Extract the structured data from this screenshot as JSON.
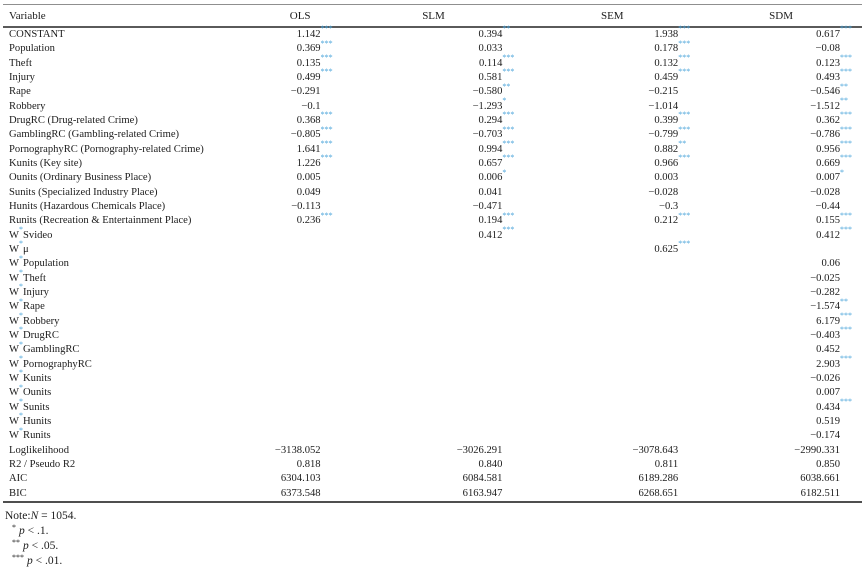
{
  "table": {
    "columns": [
      "Variable",
      "OLS",
      "SLM",
      "SEM",
      "SDM"
    ],
    "rows": [
      {
        "label": "CONSTANT",
        "values": [
          [
            "1.142",
            "***"
          ],
          [
            "0.394",
            "**"
          ],
          [
            "1.938",
            "***"
          ],
          [
            "0.617",
            "***"
          ]
        ]
      },
      {
        "label": "Population",
        "values": [
          [
            "0.369",
            "***"
          ],
          [
            "0.033",
            ""
          ],
          [
            "0.178",
            "***"
          ],
          [
            "−0.08",
            ""
          ]
        ]
      },
      {
        "label": "Theft",
        "values": [
          [
            "0.135",
            "***"
          ],
          [
            "0.114",
            "***"
          ],
          [
            "0.132",
            "***"
          ],
          [
            "0.123",
            "***"
          ]
        ]
      },
      {
        "label": "Injury",
        "values": [
          [
            "0.499",
            "***"
          ],
          [
            "0.581",
            "***"
          ],
          [
            "0.459",
            "***"
          ],
          [
            "0.493",
            "***"
          ]
        ]
      },
      {
        "label": "Rape",
        "values": [
          [
            "−0.291",
            ""
          ],
          [
            "−0.580",
            "**"
          ],
          [
            "−0.215",
            ""
          ],
          [
            "−0.546",
            "**"
          ]
        ]
      },
      {
        "label": "Robbery",
        "values": [
          [
            "−0.1",
            ""
          ],
          [
            "−1.293",
            "*"
          ],
          [
            "−1.014",
            ""
          ],
          [
            "−1.512",
            "**"
          ]
        ]
      },
      {
        "label": "DrugRC (Drug-related Crime)",
        "values": [
          [
            "0.368",
            "***"
          ],
          [
            "0.294",
            "***"
          ],
          [
            "0.399",
            "***"
          ],
          [
            "0.362",
            "***"
          ]
        ]
      },
      {
        "label": "GamblingRC (Gambling-related Crime)",
        "values": [
          [
            "−0.805",
            "***"
          ],
          [
            "−0.703",
            "***"
          ],
          [
            "−0.799",
            "***"
          ],
          [
            "−0.786",
            "***"
          ]
        ]
      },
      {
        "label": "PornographyRC (Pornography-related Crime)",
        "values": [
          [
            "1.641",
            "***"
          ],
          [
            "0.994",
            "***"
          ],
          [
            "0.882",
            "**"
          ],
          [
            "0.956",
            "***"
          ]
        ]
      },
      {
        "label": "Kunits (Key site)",
        "values": [
          [
            "1.226",
            "***"
          ],
          [
            "0.657",
            "***"
          ],
          [
            "0.966",
            "***"
          ],
          [
            "0.669",
            "***"
          ]
        ]
      },
      {
        "label": "Ounits (Ordinary Business Place)",
        "values": [
          [
            "0.005",
            ""
          ],
          [
            "0.006",
            "*"
          ],
          [
            "0.003",
            ""
          ],
          [
            "0.007",
            "*"
          ]
        ]
      },
      {
        "label": "Sunits (Specialized Industry Place)",
        "values": [
          [
            "0.049",
            ""
          ],
          [
            "0.041",
            ""
          ],
          [
            "−0.028",
            ""
          ],
          [
            "−0.028",
            ""
          ]
        ]
      },
      {
        "label": "Hunits (Hazardous Chemicals Place)",
        "values": [
          [
            "−0.113",
            ""
          ],
          [
            "−0.471",
            ""
          ],
          [
            "−0.3",
            ""
          ],
          [
            "−0.44",
            ""
          ]
        ]
      },
      {
        "label": "Runits (Recreation & Entertainment Place)",
        "values": [
          [
            "0.236",
            "***"
          ],
          [
            "0.194",
            "***"
          ],
          [
            "0.212",
            "***"
          ],
          [
            "0.155",
            "***"
          ]
        ]
      },
      {
        "label": "W*Svideo",
        "values": [
          null,
          [
            "0.412",
            "***"
          ],
          null,
          [
            "0.412",
            "***"
          ]
        ]
      },
      {
        "label": "W*μ",
        "values": [
          null,
          null,
          [
            "0.625",
            "***"
          ],
          null
        ]
      },
      {
        "label": "W*Population",
        "values": [
          null,
          null,
          null,
          [
            "0.06",
            ""
          ]
        ]
      },
      {
        "label": "W*Theft",
        "values": [
          null,
          null,
          null,
          [
            "−0.025",
            ""
          ]
        ]
      },
      {
        "label": "W*Injury",
        "values": [
          null,
          null,
          null,
          [
            "−0.282",
            ""
          ]
        ]
      },
      {
        "label": "W*Rape",
        "values": [
          null,
          null,
          null,
          [
            "−1.574",
            "**"
          ]
        ]
      },
      {
        "label": "W*Robbery",
        "values": [
          null,
          null,
          null,
          [
            "6.179",
            "***"
          ]
        ]
      },
      {
        "label": "W*DrugRC",
        "values": [
          null,
          null,
          null,
          [
            "−0.403",
            "***"
          ]
        ]
      },
      {
        "label": "W*GamblingRC",
        "values": [
          null,
          null,
          null,
          [
            "0.452",
            ""
          ]
        ]
      },
      {
        "label": "W*PornographyRC",
        "values": [
          null,
          null,
          null,
          [
            "2.903",
            "***"
          ]
        ]
      },
      {
        "label": "W*Kunits",
        "values": [
          null,
          null,
          null,
          [
            "−0.026",
            ""
          ]
        ]
      },
      {
        "label": "W*Ounits",
        "values": [
          null,
          null,
          null,
          [
            "0.007",
            ""
          ]
        ]
      },
      {
        "label": "W*Sunits",
        "values": [
          null,
          null,
          null,
          [
            "0.434",
            "***"
          ]
        ]
      },
      {
        "label": "W*Hunits",
        "values": [
          null,
          null,
          null,
          [
            "0.519",
            ""
          ]
        ]
      },
      {
        "label": "W*Runits",
        "values": [
          null,
          null,
          null,
          [
            "−0.174",
            ""
          ]
        ]
      },
      {
        "label": "Loglikelihood",
        "values": [
          [
            "−3138.052",
            ""
          ],
          [
            "−3026.291",
            ""
          ],
          [
            "−3078.643",
            ""
          ],
          [
            "−2990.331",
            ""
          ]
        ]
      },
      {
        "label": "R2 / Pseudo R2",
        "values": [
          [
            "0.818",
            ""
          ],
          [
            "0.840",
            ""
          ],
          [
            "0.811",
            ""
          ],
          [
            "0.850",
            ""
          ]
        ]
      },
      {
        "label": "AIC",
        "values": [
          [
            "6304.103",
            ""
          ],
          [
            "6084.581",
            ""
          ],
          [
            "6189.286",
            ""
          ],
          [
            "6038.661",
            ""
          ]
        ]
      },
      {
        "label": "BIC",
        "values": [
          [
            "6373.548",
            ""
          ],
          [
            "6163.947",
            ""
          ],
          [
            "6268.651",
            ""
          ],
          [
            "6182.511",
            ""
          ]
        ]
      }
    ]
  },
  "notes": {
    "prefix": "Note:",
    "n_italic": "N",
    "n_rest": " = 1054.",
    "sig": [
      {
        "stars": "*",
        "p": "p",
        "cond": " < .1."
      },
      {
        "stars": "**",
        "p": "p",
        "cond": " < .05."
      },
      {
        "stars": "***",
        "p": "p",
        "cond": " < .01."
      }
    ]
  },
  "colors": {
    "star_blue": "#4aa4da",
    "text": "#1c1c1c",
    "rule_light": "#8f8f8f",
    "rule_dark": "#4f4f4f"
  }
}
